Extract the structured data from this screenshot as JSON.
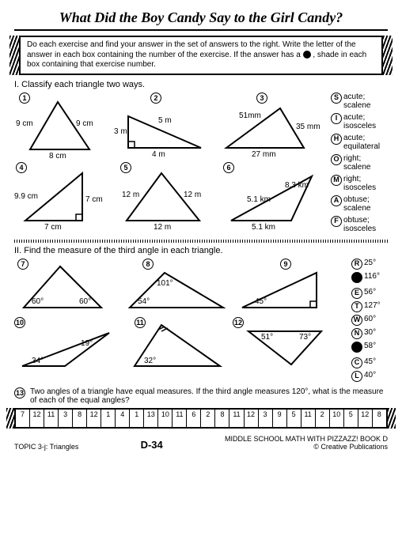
{
  "title": "What Did the Boy Candy Say to the Girl Candy?",
  "instructions": "Do each exercise and find your answer in the set of answers to the right. Write the letter of the answer in each box containing the number of the exercise. If the answer has a",
  "instructions2": ", shade in each box containing that exercise number.",
  "section1": "I.  Classify each triangle two ways.",
  "section2": "II.  Find the measure of the third angle in each triangle.",
  "answers1": [
    {
      "l": "S",
      "t": "acute; scalene"
    },
    {
      "l": "I",
      "t": "acute; isosceles"
    },
    {
      "l": "H",
      "t": "acute; equilateral"
    },
    {
      "l": "O",
      "t": "right; scalene"
    },
    {
      "l": "M",
      "t": "right; isosceles"
    },
    {
      "l": "A",
      "t": "obtuse; scalene"
    },
    {
      "l": "F",
      "t": "obtuse; isosceles"
    }
  ],
  "answers2": [
    {
      "l": "R",
      "t": "25°",
      "f": false
    },
    {
      "l": "",
      "t": "116°",
      "f": true
    },
    {
      "l": "E",
      "t": "56°",
      "f": false
    },
    {
      "l": "T",
      "t": "127°",
      "f": false
    },
    {
      "l": "W",
      "t": "60°",
      "f": false
    },
    {
      "l": "N",
      "t": "30°",
      "f": false
    },
    {
      "l": "",
      "t": "58°",
      "f": true
    },
    {
      "l": "C",
      "t": "45°",
      "f": false
    },
    {
      "l": "L",
      "t": "40°",
      "f": false
    }
  ],
  "tri": {
    "1": {
      "s": [
        "9 cm",
        "9 cm",
        "8 cm"
      ]
    },
    "2": {
      "s": [
        "5 m",
        "3 m",
        "4 m"
      ]
    },
    "3": {
      "s": [
        "51mm",
        "35 mm",
        "27 mm"
      ]
    },
    "4": {
      "s": [
        "9.9 cm",
        "7 cm",
        "7 cm"
      ]
    },
    "5": {
      "s": [
        "12 m",
        "12 m",
        "12 m"
      ]
    },
    "6": {
      "s": [
        "8.3 km",
        "5.1 km",
        "5.1 km"
      ]
    },
    "7": {
      "a": [
        "60°",
        "60°"
      ]
    },
    "8": {
      "a": [
        "101°",
        "54°"
      ]
    },
    "9": {
      "a": [
        "45°"
      ]
    },
    "10": {
      "a": [
        "19°",
        "34°"
      ]
    },
    "11": {
      "a": [
        "32°"
      ]
    },
    "12": {
      "a": [
        "51°",
        "73°"
      ]
    }
  },
  "q13": "Two angles of a triangle have equal measures. If the third angle measures 120°, what is the measure of each of the equal angles?",
  "strip": [
    "7",
    "12",
    "11",
    "3",
    "8",
    "12",
    "1",
    "4",
    "1",
    "13",
    "10",
    "11",
    "6",
    "2",
    "8",
    "11",
    "12",
    "3",
    "9",
    "5",
    "11",
    "2",
    "10",
    "5",
    "12",
    "8"
  ],
  "footer": {
    "topic": "TOPIC 3-j: Triangles",
    "page": "D-34",
    "src1": "MIDDLE SCHOOL MATH WITH PIZZAZZ! BOOK D",
    "src2": "© Creative Publications"
  }
}
